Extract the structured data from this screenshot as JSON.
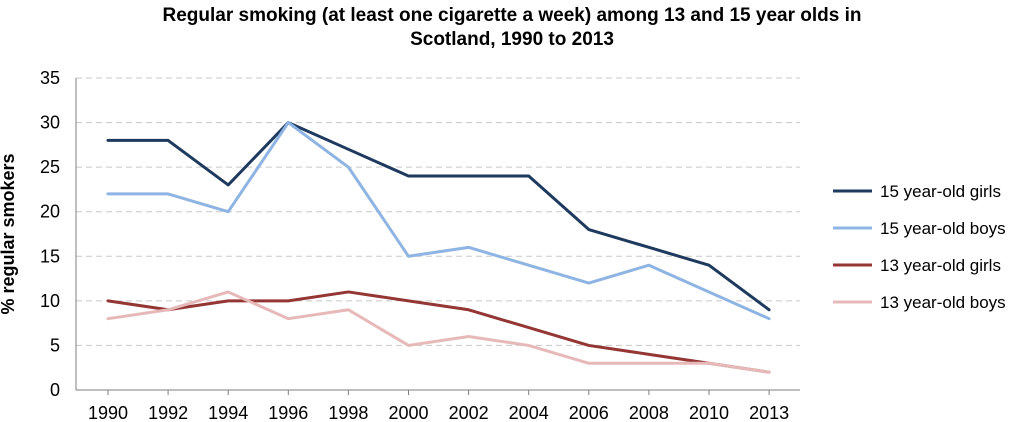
{
  "chart_data": {
    "type": "line",
    "title_lines": [
      "Regular smoking (at least one cigarette a week) among 13 and 15 year olds in",
      "Scotland, 1990 to 2013"
    ],
    "ylabel": "% regular smokers",
    "xlabel": "",
    "categories": [
      "1990",
      "1992",
      "1994",
      "1996",
      "1998",
      "2000",
      "2002",
      "2004",
      "2006",
      "2008",
      "2010",
      "2013"
    ],
    "ylim": [
      0,
      35
    ],
    "yticks": [
      "0",
      "5",
      "10",
      "15",
      "20",
      "25",
      "30",
      "35"
    ],
    "grid": true,
    "legend_position": "right",
    "series": [
      {
        "name": "15 year-old girls",
        "color": "#1f3a5f",
        "values": [
          28,
          28,
          23,
          30,
          27,
          24,
          24,
          24,
          18,
          16,
          14,
          9
        ]
      },
      {
        "name": "15 year-old boys",
        "color": "#8eb4e3",
        "values": [
          22,
          22,
          20,
          30,
          25,
          15,
          16,
          14,
          12,
          14,
          11,
          8
        ]
      },
      {
        "name": "13 year-old girls",
        "color": "#943634",
        "values": [
          10,
          9,
          10,
          10,
          11,
          10,
          9,
          7,
          5,
          4,
          3,
          2
        ]
      },
      {
        "name": "13 year-old boys",
        "color": "#e6b9b8",
        "values": [
          8,
          9,
          11,
          8,
          9,
          5,
          6,
          5,
          3,
          3,
          3,
          2
        ]
      }
    ]
  }
}
